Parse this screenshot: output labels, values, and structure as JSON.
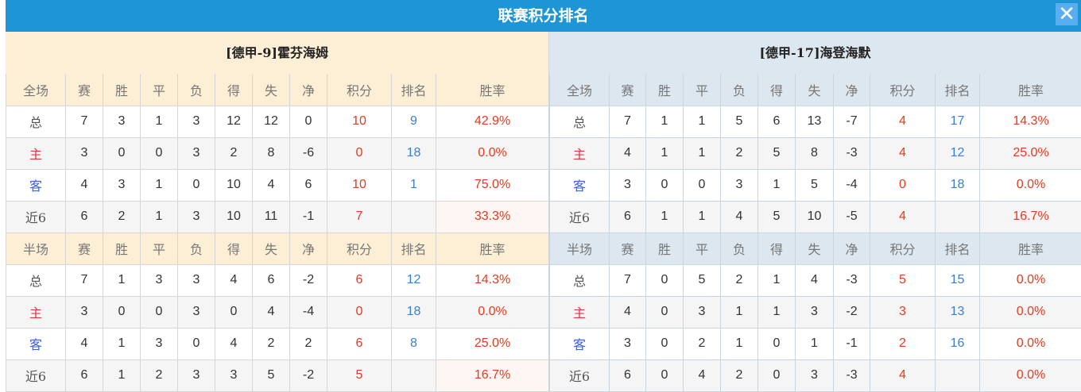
{
  "title": "联赛积分排名",
  "close_icon": "close-icon",
  "colors": {
    "title_bar": "#1e96d6",
    "home_header": "#fcefd6",
    "away_header": "#dde7ef",
    "points": "#e53a1e",
    "rank": "#3a7fcf"
  },
  "columns": [
    "赛",
    "胜",
    "平",
    "负",
    "得",
    "失",
    "净",
    "积分",
    "排名",
    "胜率"
  ],
  "teams": [
    {
      "name": "[德甲-9]霍芬海姆",
      "sections": [
        {
          "label": "全场",
          "rows": [
            [
              "总",
              "7",
              "3",
              "1",
              "3",
              "12",
              "12",
              "0",
              "10",
              "9",
              "42.9%"
            ],
            [
              "主",
              "3",
              "0",
              "0",
              "3",
              "2",
              "8",
              "-6",
              "0",
              "18",
              "0.0%"
            ],
            [
              "客",
              "4",
              "3",
              "1",
              "0",
              "10",
              "4",
              "6",
              "10",
              "1",
              "75.0%"
            ],
            [
              "近6",
              "6",
              "2",
              "1",
              "3",
              "10",
              "11",
              "-1",
              "7",
              "",
              "33.3%"
            ]
          ]
        },
        {
          "label": "半场",
          "rows": [
            [
              "总",
              "7",
              "1",
              "3",
              "3",
              "4",
              "6",
              "-2",
              "6",
              "12",
              "14.3%"
            ],
            [
              "主",
              "3",
              "0",
              "0",
              "3",
              "0",
              "4",
              "-4",
              "0",
              "18",
              "0.0%"
            ],
            [
              "客",
              "4",
              "1",
              "3",
              "0",
              "4",
              "2",
              "2",
              "6",
              "8",
              "25.0%"
            ],
            [
              "近6",
              "6",
              "1",
              "2",
              "3",
              "3",
              "5",
              "-2",
              "5",
              "",
              "16.7%"
            ]
          ]
        }
      ]
    },
    {
      "name": "[德甲-17]海登海默",
      "sections": [
        {
          "label": "全场",
          "rows": [
            [
              "总",
              "7",
              "1",
              "1",
              "5",
              "6",
              "13",
              "-7",
              "4",
              "17",
              "14.3%"
            ],
            [
              "主",
              "4",
              "1",
              "1",
              "2",
              "5",
              "8",
              "-3",
              "4",
              "12",
              "25.0%"
            ],
            [
              "客",
              "3",
              "0",
              "0",
              "3",
              "1",
              "5",
              "-4",
              "0",
              "18",
              "0.0%"
            ],
            [
              "近6",
              "6",
              "1",
              "1",
              "4",
              "5",
              "10",
              "-5",
              "4",
              "",
              "16.7%"
            ]
          ]
        },
        {
          "label": "半场",
          "rows": [
            [
              "总",
              "7",
              "0",
              "5",
              "2",
              "1",
              "4",
              "-3",
              "5",
              "15",
              "0.0%"
            ],
            [
              "主",
              "4",
              "0",
              "3",
              "1",
              "1",
              "3",
              "-2",
              "3",
              "13",
              "0.0%"
            ],
            [
              "客",
              "3",
              "0",
              "2",
              "1",
              "0",
              "1",
              "-1",
              "2",
              "16",
              "0.0%"
            ],
            [
              "近6",
              "6",
              "0",
              "4",
              "2",
              "0",
              "3",
              "-3",
              "4",
              "",
              "0.0%"
            ]
          ]
        }
      ]
    }
  ]
}
